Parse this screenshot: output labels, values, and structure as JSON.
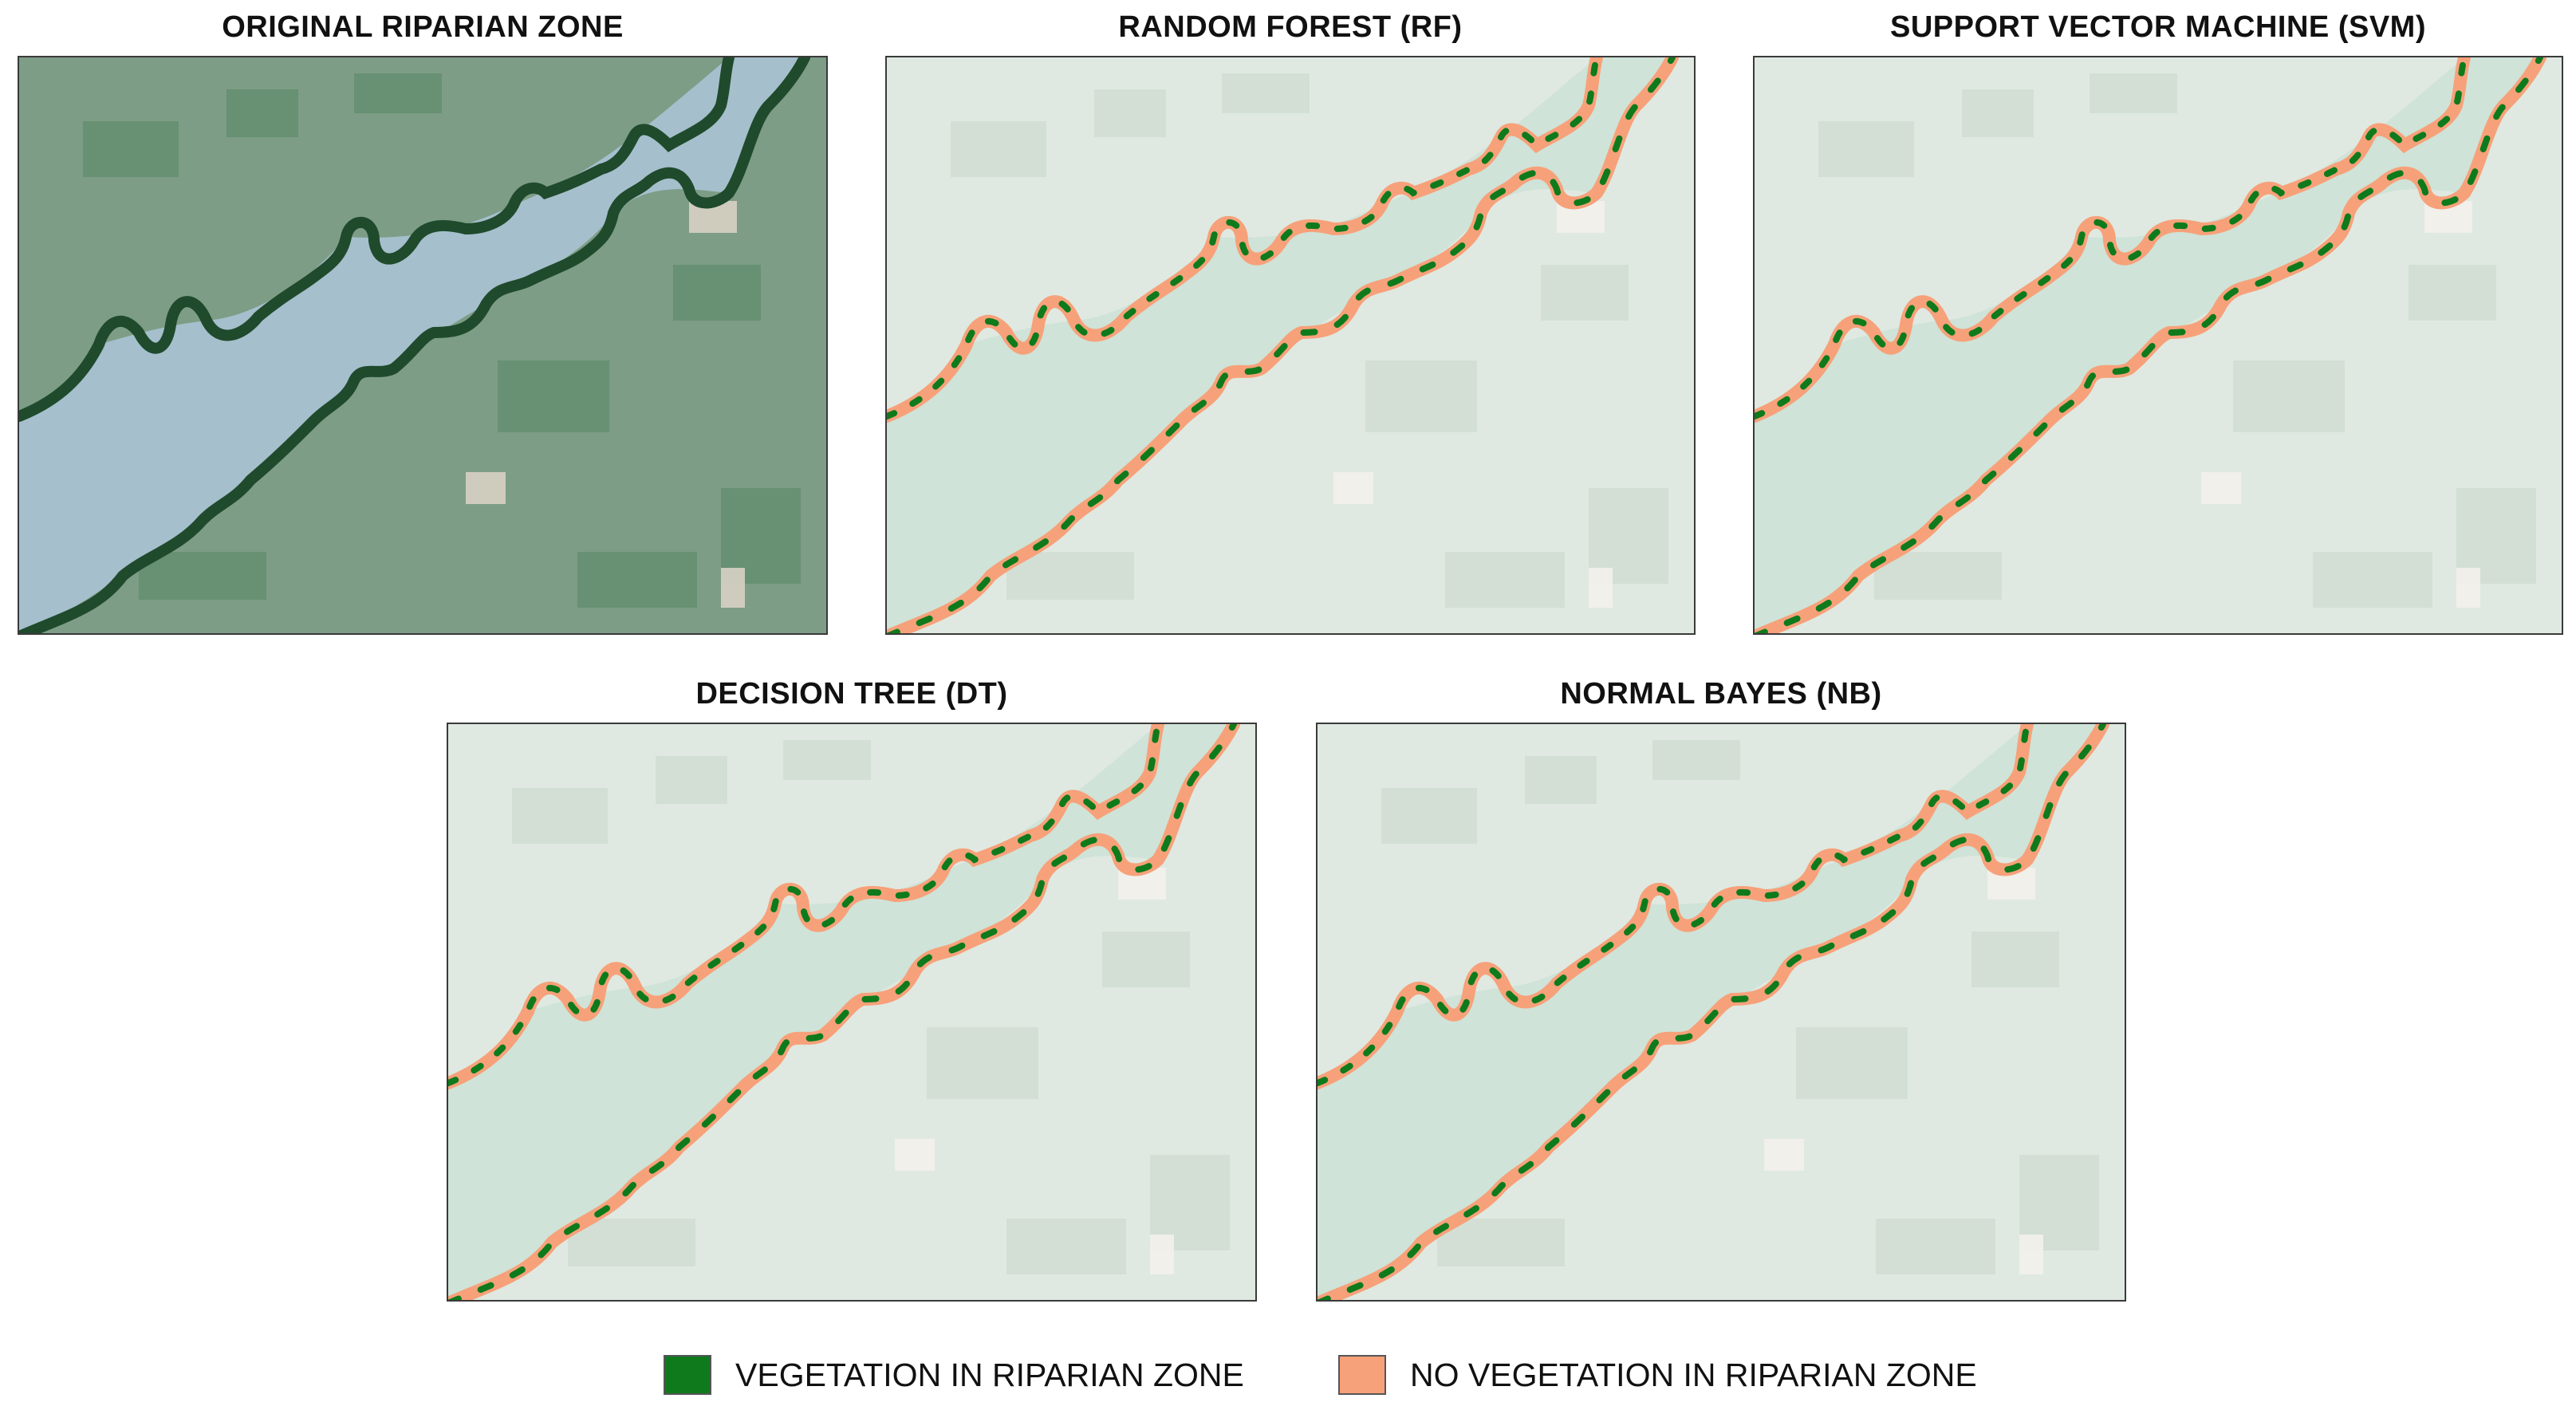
{
  "panels": [
    {
      "title": "ORIGINAL RIPARIAN ZONE",
      "style": "original"
    },
    {
      "title": "RANDOM FOREST (RF)",
      "style": "classified"
    },
    {
      "title": "SUPPORT VECTOR MACHINE (SVM)",
      "style": "classified"
    },
    {
      "title": "DECISION TREE (DT)",
      "style": "classified"
    },
    {
      "title": "NORMAL BAYES (NB)",
      "style": "classified"
    }
  ],
  "legend": {
    "vegetation_label": "VEGETATION IN RIPARIAN ZONE",
    "vegetation_color": "#0e7a1c",
    "no_vegetation_label": "NO VEGETATION IN RIPARIAN ZONE",
    "no_vegetation_color": "#f7a17a"
  },
  "colors": {
    "water_original": "#a5bfcc",
    "water_classified": "#cfe3d8",
    "land_original": "#7d9d86",
    "land_classified": "#dfe9e1",
    "riparian_original": "#1f4a2c"
  }
}
